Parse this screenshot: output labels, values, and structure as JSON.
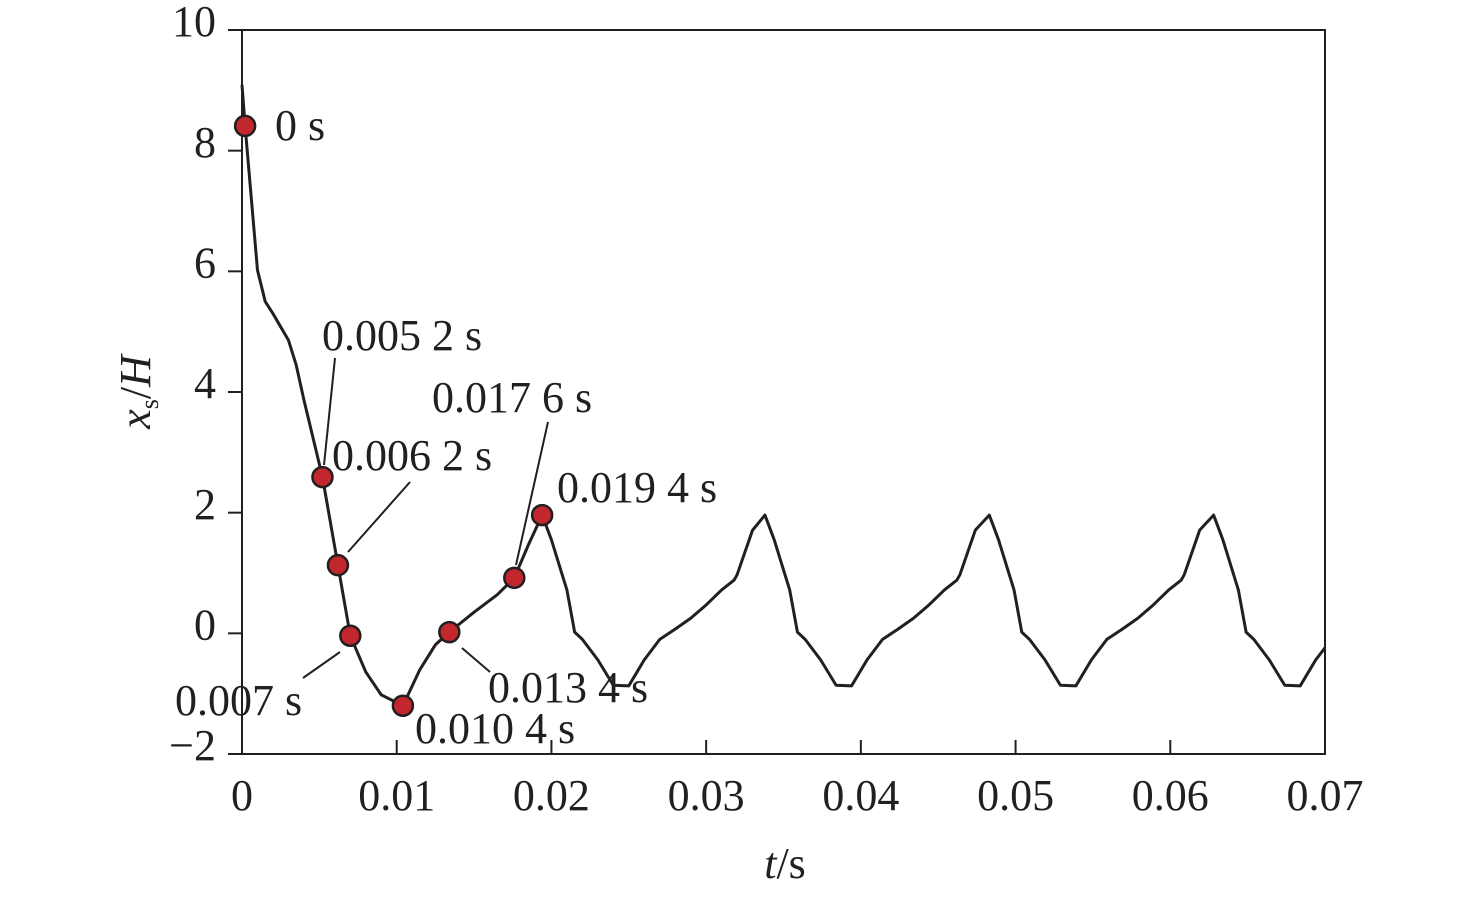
{
  "chart_data": {
    "type": "line",
    "xlabel": {
      "parts": [
        "t",
        "/s"
      ]
    },
    "ylabel": {
      "parts": [
        "x",
        "s",
        "/",
        "H"
      ]
    },
    "xlim": [
      0,
      0.07
    ],
    "ylim": [
      -2,
      10
    ],
    "xticks": [
      0,
      0.01,
      0.02,
      0.03,
      0.04,
      0.05,
      0.06,
      0.07
    ],
    "yticks": [
      {
        "value": -2,
        "label": "−2"
      },
      0,
      2,
      4,
      6,
      8,
      10
    ],
    "series": [
      {
        "color": "#231f20",
        "x": [
          0,
          0.0002,
          0.001,
          0.0015,
          0.002,
          0.003,
          0.0035,
          0.004,
          0.0052,
          0.0062,
          0.007,
          0.008,
          0.009,
          0.0104,
          0.0115,
          0.0125,
          0.0134,
          0.015,
          0.0165,
          0.0176,
          0.0185,
          0.0194,
          0.02,
          0.021,
          0.0215,
          0.022,
          0.023,
          0.024,
          0.025,
          0.026,
          0.027,
          0.028,
          0.029,
          0.03,
          0.031,
          0.0318,
          0.032,
          0.033,
          0.0338,
          0.0344,
          0.0354,
          0.0359,
          0.0364,
          0.0374,
          0.0384,
          0.0394,
          0.0404,
          0.0414,
          0.0424,
          0.0434,
          0.0444,
          0.0454,
          0.0462,
          0.0464,
          0.0474,
          0.0483,
          0.0489,
          0.0499,
          0.0504,
          0.0509,
          0.0519,
          0.0529,
          0.0539,
          0.0549,
          0.0559,
          0.0569,
          0.0579,
          0.0589,
          0.0599,
          0.0607,
          0.0609,
          0.0619,
          0.0628,
          0.0634,
          0.0644,
          0.0649,
          0.0654,
          0.0664,
          0.0674,
          0.0684,
          0.0694,
          0.07
        ],
        "values": [
          9.09,
          8.41,
          6.02,
          5.5,
          5.3,
          4.86,
          4.45,
          3.87,
          2.59,
          1.13,
          -0.04,
          -0.64,
          -1.02,
          -1.2,
          -0.6,
          -0.19,
          0.02,
          0.35,
          0.64,
          0.92,
          1.46,
          1.96,
          1.55,
          0.72,
          0.02,
          -0.1,
          -0.44,
          -0.86,
          -0.87,
          -0.44,
          -0.1,
          0.07,
          0.25,
          0.47,
          0.72,
          0.88,
          0.97,
          1.71,
          1.96,
          1.55,
          0.72,
          0.02,
          -0.1,
          -0.44,
          -0.86,
          -0.87,
          -0.44,
          -0.1,
          0.07,
          0.25,
          0.47,
          0.72,
          0.88,
          0.97,
          1.71,
          1.96,
          1.55,
          0.72,
          0.02,
          -0.1,
          -0.44,
          -0.86,
          -0.87,
          -0.44,
          -0.1,
          0.07,
          0.25,
          0.47,
          0.72,
          0.88,
          0.97,
          1.71,
          1.96,
          1.55,
          0.72,
          0.02,
          -0.1,
          -0.44,
          -0.86,
          -0.87,
          -0.44,
          -0.24
        ]
      }
    ],
    "markers": {
      "color": "#c1272d",
      "x": [
        0.0002,
        0.0052,
        0.0062,
        0.007,
        0.0104,
        0.0134,
        0.0176,
        0.0194
      ],
      "values": [
        8.41,
        2.59,
        1.13,
        -0.04,
        -1.2,
        0.02,
        0.92,
        1.96
      ],
      "labels": [
        "0 s",
        "0.005 2 s",
        "0.006 2 s",
        "0.007 s",
        "0.010 4 s",
        "0.013 4 s",
        "0.017 6 s",
        "0.019 4 s"
      ]
    }
  }
}
